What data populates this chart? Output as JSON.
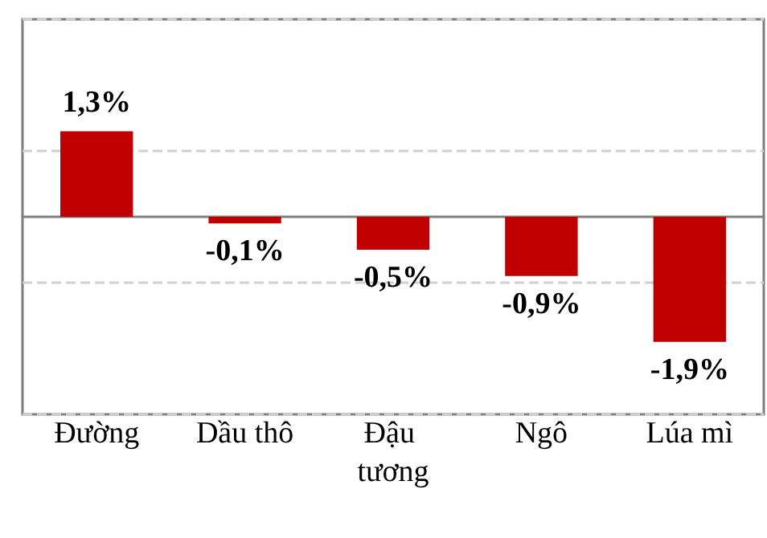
{
  "chart_data": {
    "type": "bar",
    "categories": [
      "Đường",
      "Dầu thô",
      "Đậu tương",
      "Ngô",
      "Lúa mì"
    ],
    "values": [
      1.3,
      -0.1,
      -0.5,
      -0.9,
      -1.9
    ],
    "value_labels": [
      "1,3%",
      "-0,1%",
      "-0,5%",
      "-0,9%",
      "-1,9%"
    ],
    "color": "#c00000",
    "ylim": [
      -3,
      3
    ],
    "yticks": [
      {
        "value": -3,
        "label": null
      },
      {
        "value": -1,
        "label": null
      },
      {
        "value": 1,
        "label": null
      },
      {
        "value": 3,
        "label": null
      }
    ],
    "tick_labels": "x",
    "grid": "y"
  }
}
